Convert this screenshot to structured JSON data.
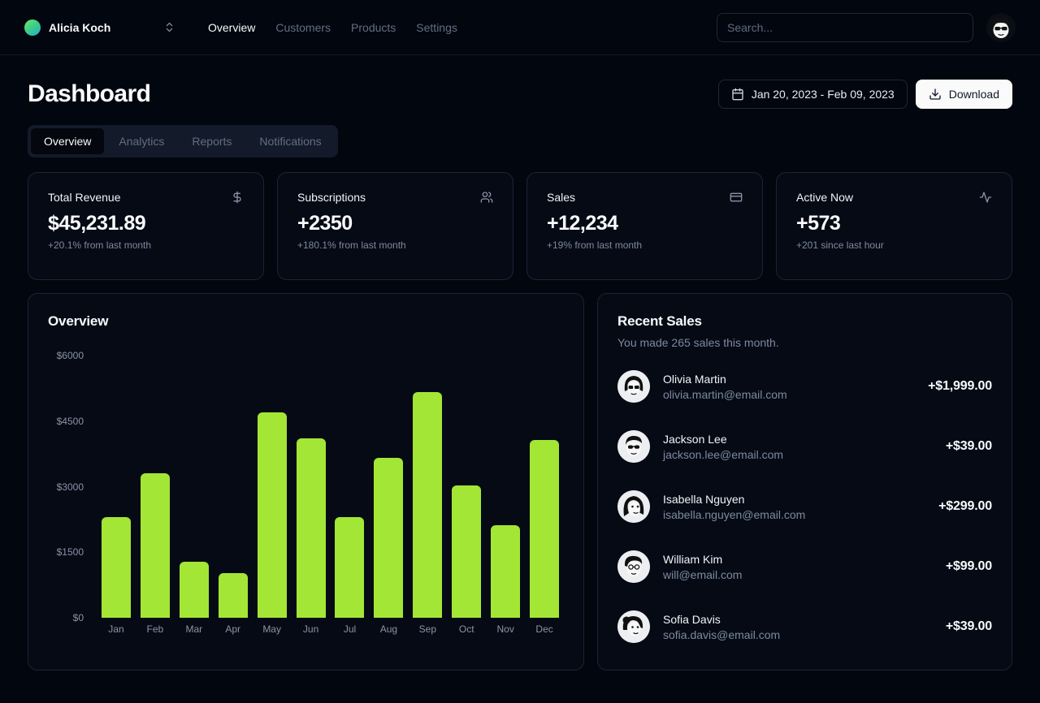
{
  "header": {
    "team_name": "Alicia Koch",
    "nav": [
      {
        "label": "Overview",
        "active": true
      },
      {
        "label": "Customers",
        "active": false
      },
      {
        "label": "Products",
        "active": false
      },
      {
        "label": "Settings",
        "active": false
      }
    ],
    "search_placeholder": "Search..."
  },
  "page": {
    "title": "Dashboard",
    "date_range": "Jan 20, 2023 - Feb 09, 2023",
    "download_label": "Download"
  },
  "tabs": [
    {
      "label": "Overview",
      "active": true
    },
    {
      "label": "Analytics",
      "active": false
    },
    {
      "label": "Reports",
      "active": false
    },
    {
      "label": "Notifications",
      "active": false
    }
  ],
  "stats": [
    {
      "label": "Total Revenue",
      "icon": "dollar-sign-icon",
      "value": "$45,231.89",
      "change": "+20.1% from last month"
    },
    {
      "label": "Subscriptions",
      "icon": "users-icon",
      "value": "+2350",
      "change": "+180.1% from last month"
    },
    {
      "label": "Sales",
      "icon": "credit-card-icon",
      "value": "+12,234",
      "change": "+19% from last month"
    },
    {
      "label": "Active Now",
      "icon": "activity-icon",
      "value": "+573",
      "change": "+201 since last hour"
    }
  ],
  "chart_data": {
    "type": "bar",
    "title": "Overview",
    "categories": [
      "Jan",
      "Feb",
      "Mar",
      "Apr",
      "May",
      "Jun",
      "Jul",
      "Aug",
      "Sep",
      "Oct",
      "Nov",
      "Dec"
    ],
    "values": [
      2300,
      3300,
      1280,
      1020,
      4700,
      4100,
      2300,
      3660,
      5170,
      3030,
      2120,
      4070
    ],
    "y_ticks": [
      "$6000",
      "$4500",
      "$3000",
      "$1500",
      "$0"
    ],
    "ylim": [
      0,
      6000
    ],
    "xlabel": "",
    "ylabel": "",
    "grid": false,
    "legend": false,
    "bar_color": "#a3e635"
  },
  "recent_sales": {
    "title": "Recent Sales",
    "subtitle": "You made 265 sales this month.",
    "items": [
      {
        "name": "Olivia Martin",
        "email": "olivia.martin@email.com",
        "amount": "+$1,999.00"
      },
      {
        "name": "Jackson Lee",
        "email": "jackson.lee@email.com",
        "amount": "+$39.00"
      },
      {
        "name": "Isabella Nguyen",
        "email": "isabella.nguyen@email.com",
        "amount": "+$299.00"
      },
      {
        "name": "William Kim",
        "email": "will@email.com",
        "amount": "+$99.00"
      },
      {
        "name": "Sofia Davis",
        "email": "sofia.davis@email.com",
        "amount": "+$39.00"
      }
    ]
  },
  "colors": {
    "accent": "#a3e635",
    "background": "#02060f",
    "card_background": "#050a15",
    "card_border": "#1c2433",
    "muted_text": "#7d8a9f",
    "download_button_background": "#fafafa"
  }
}
